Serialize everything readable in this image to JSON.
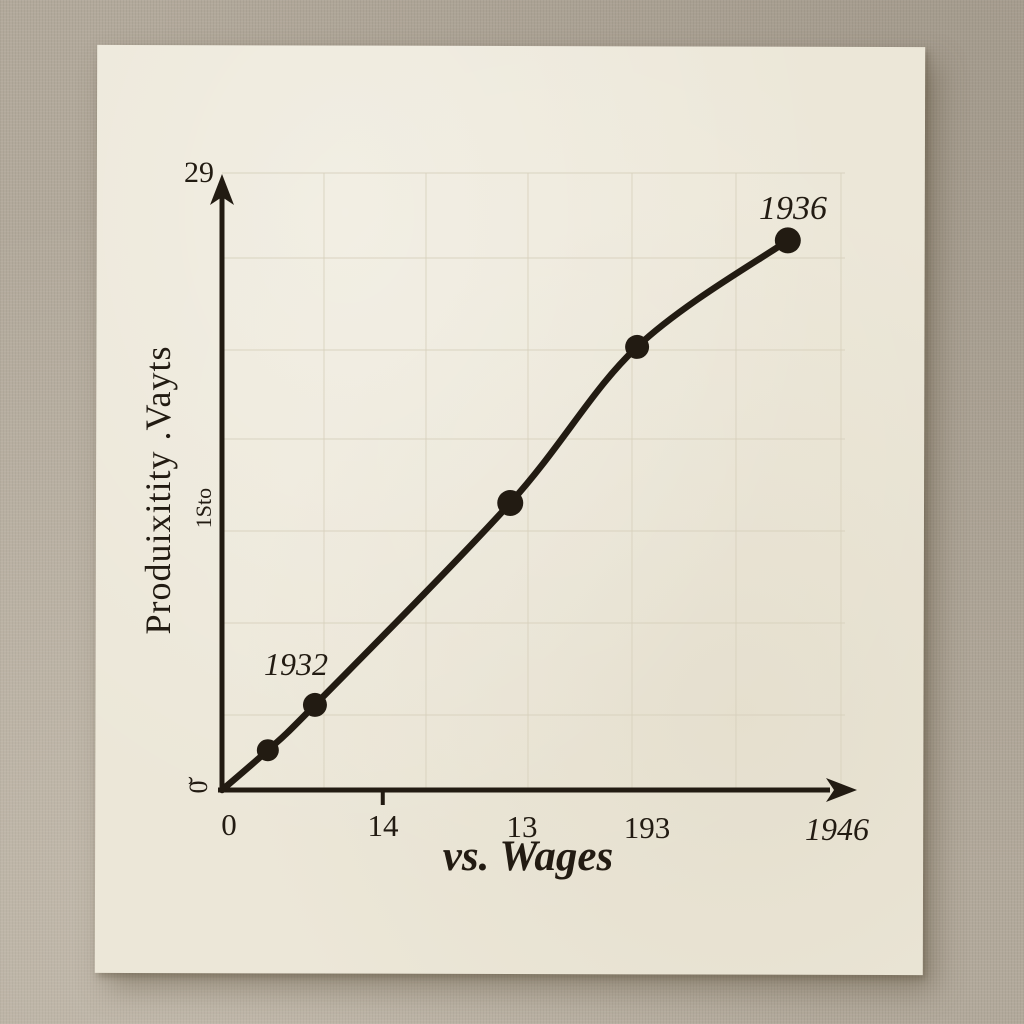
{
  "scene": {
    "background_color": "#b2a99b",
    "paper_color": "#ece7d8",
    "ink_color": "#221b12",
    "grid_color": "#d8d1bd"
  },
  "chart_data": {
    "type": "line",
    "title": "vs. Wages",
    "ylabel": "Produixitity .Vayts",
    "ylabel_secondary": "1Sto",
    "y_top_label": "29",
    "origin_side_label": "0̆",
    "x_tick_labels": [
      "0",
      "14",
      "13",
      "193",
      "1946"
    ],
    "x_tick_positions": [
      1.1,
      25.6,
      47.8,
      67.7,
      97.9
    ],
    "axis_range": [
      0,
      100
    ],
    "grid": true,
    "legend": null,
    "points": [
      {
        "x": 0,
        "y": 0
      },
      {
        "x": 7.3,
        "y": 6.5
      },
      {
        "x": 14.8,
        "y": 13.9
      },
      {
        "x": 45.9,
        "y": 46.9
      },
      {
        "x": 66.1,
        "y": 72.4
      },
      {
        "x": 90.1,
        "y": 89.8
      }
    ],
    "point_labels": [
      {
        "text": "1932",
        "point_index": 2
      },
      {
        "text": "1936",
        "point_index": 5
      }
    ]
  }
}
